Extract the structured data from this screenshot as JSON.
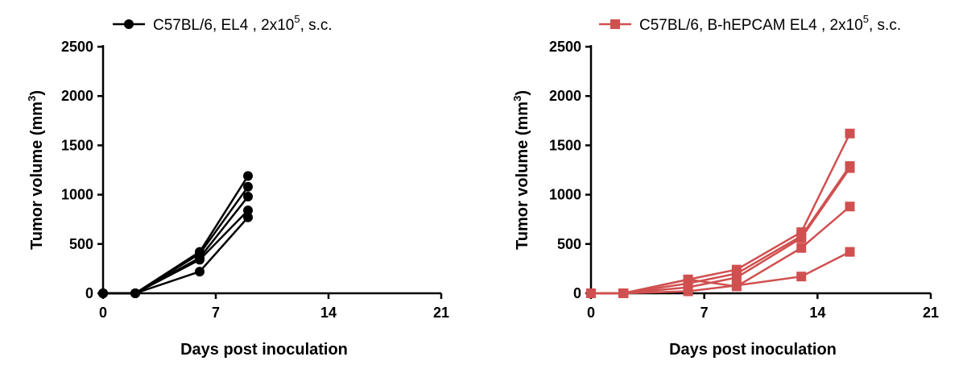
{
  "chart_data": [
    {
      "type": "line",
      "legend": {
        "label": "C57BL/6, EL4 , 2x10",
        "sup": "5",
        "suffix": ", s.c.",
        "marker": "circle",
        "color": "#000000"
      },
      "xlabel": "Days post inoculation",
      "ylabel": "Tumor volume (mm",
      "ylabel_sup": "3",
      "ylabel_close": ")",
      "xlim": [
        0,
        21
      ],
      "ylim": [
        0,
        2500
      ],
      "xticks": [
        "0",
        "7",
        "14",
        "21"
      ],
      "yticks": [
        "0",
        "500",
        "1000",
        "1500",
        "2000",
        "2500"
      ],
      "x": [
        0,
        2,
        6,
        9
      ],
      "series": [
        {
          "values": [
            0,
            0,
            420,
            1190
          ]
        },
        {
          "values": [
            0,
            0,
            400,
            1080
          ]
        },
        {
          "values": [
            0,
            0,
            360,
            980
          ]
        },
        {
          "values": [
            0,
            0,
            340,
            840
          ]
        },
        {
          "values": [
            0,
            0,
            220,
            770
          ]
        }
      ]
    },
    {
      "type": "line",
      "legend": {
        "label": "C57BL/6, B-hEPCAM EL4 , 2x10",
        "sup": "5",
        "suffix": ", s.c.",
        "marker": "square",
        "color": "#d05050"
      },
      "xlabel": "Days post inoculation",
      "ylabel": "Tumor volume (mm",
      "ylabel_sup": "3",
      "ylabel_close": ")",
      "xlim": [
        0,
        21
      ],
      "ylim": [
        0,
        2500
      ],
      "xticks": [
        "0",
        "7",
        "14",
        "21"
      ],
      "yticks": [
        "0",
        "500",
        "1000",
        "1500",
        "2000",
        "2500"
      ],
      "x": [
        0,
        2,
        6,
        9,
        13,
        16
      ],
      "series": [
        {
          "values": [
            0,
            0,
            140,
            240,
            620,
            1620
          ]
        },
        {
          "values": [
            0,
            0,
            100,
            200,
            580,
            1290
          ]
        },
        {
          "values": [
            0,
            0,
            60,
            160,
            560,
            1270
          ]
        },
        {
          "values": [
            0,
            0,
            140,
            70,
            460,
            880
          ]
        },
        {
          "values": [
            0,
            0,
            20,
            80,
            170,
            420
          ]
        }
      ]
    }
  ]
}
